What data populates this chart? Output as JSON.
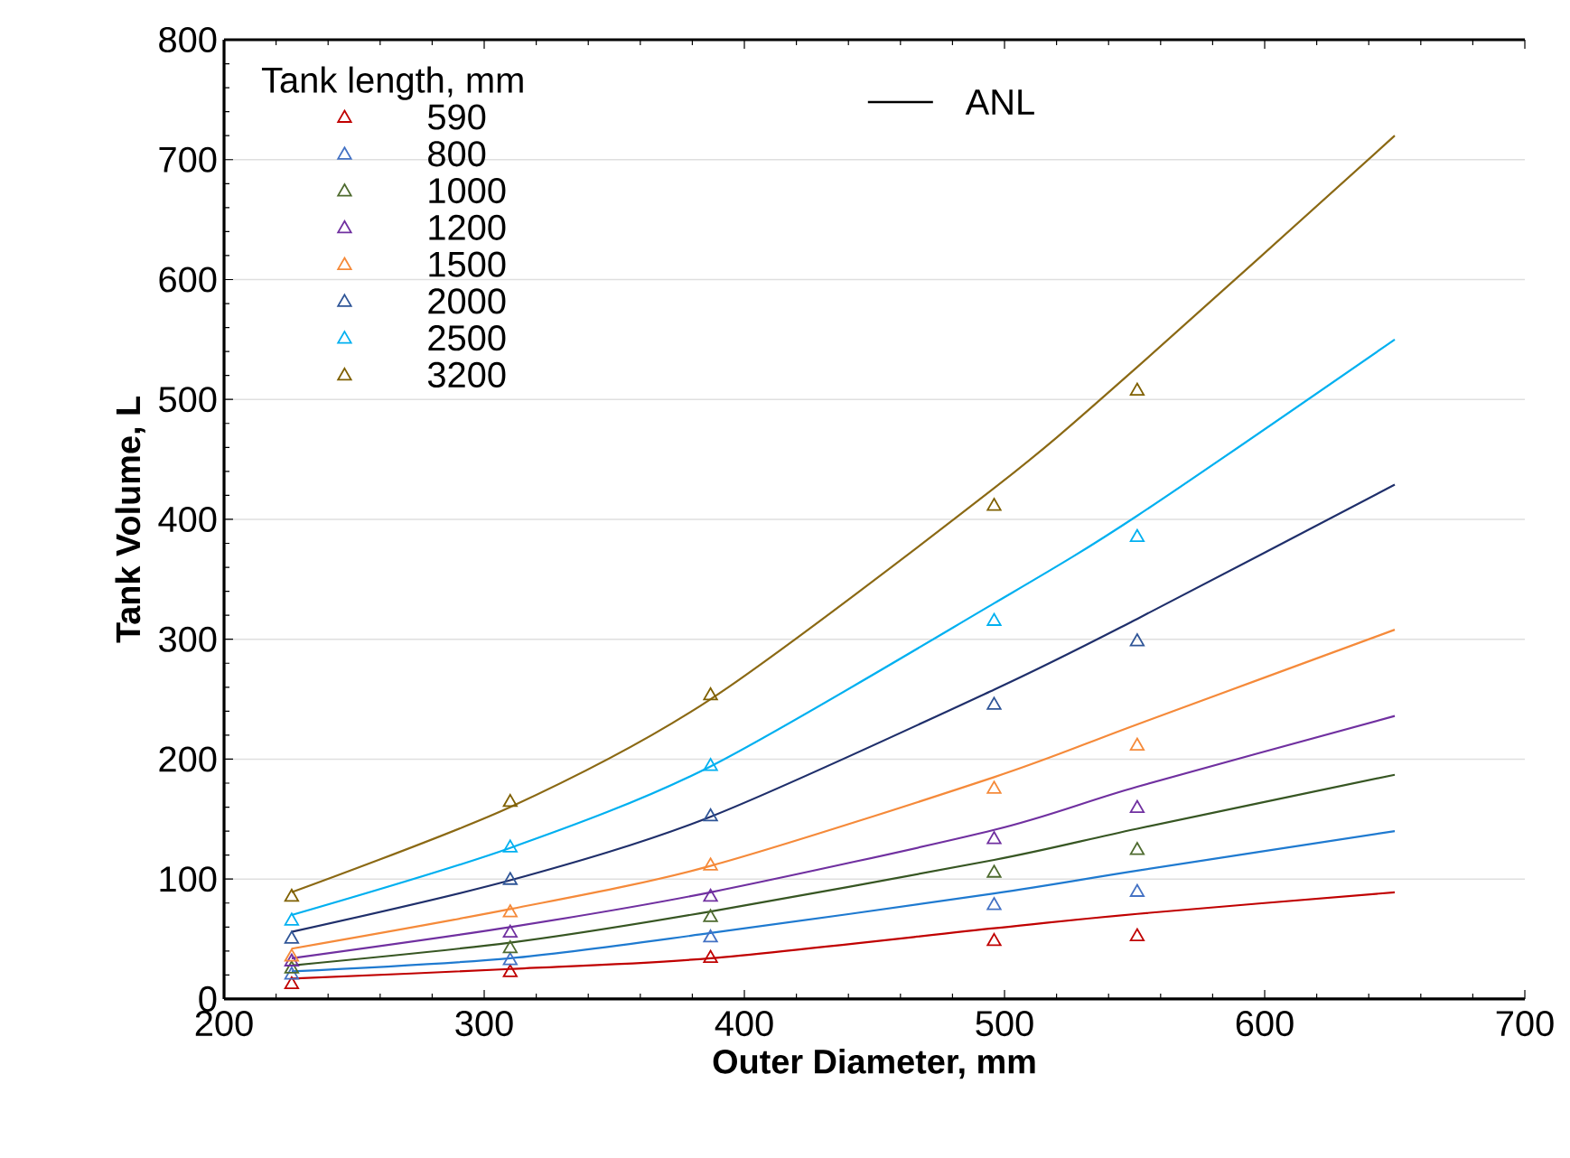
{
  "chart_data": {
    "type": "line",
    "xlabel": "Outer Diameter, mm",
    "ylabel": "Tank Volume, L",
    "legend_title": "Tank length, mm",
    "xlim": [
      200,
      700
    ],
    "ylim": [
      0,
      800
    ],
    "xticks": [
      200,
      300,
      400,
      500,
      600,
      700
    ],
    "yticks": [
      0,
      100,
      200,
      300,
      400,
      500,
      600,
      700,
      800
    ],
    "grid": "y",
    "legend": "top left",
    "annotations": [
      "ANL"
    ],
    "series": [
      {
        "name": "590",
        "type": "scatter",
        "marker": "triangle",
        "color": "#c00000",
        "x": [
          226,
          310,
          387,
          496,
          551
        ],
        "values": [
          12,
          22,
          34,
          48,
          52
        ]
      },
      {
        "name": "800",
        "type": "scatter",
        "marker": "triangle",
        "color": "#4472c4",
        "x": [
          226,
          310,
          387,
          496,
          551
        ],
        "values": [
          20,
          32,
          51,
          78,
          89
        ]
      },
      {
        "name": "1000",
        "type": "scatter",
        "marker": "triangle",
        "color": "#4e6b2f",
        "x": [
          226,
          310,
          387,
          496,
          551
        ],
        "values": [
          25,
          42,
          68,
          105,
          124
        ]
      },
      {
        "name": "1200",
        "type": "scatter",
        "marker": "triangle",
        "color": "#7030a0",
        "x": [
          226,
          310,
          387,
          496,
          551
        ],
        "values": [
          31,
          55,
          85,
          133,
          159
        ]
      },
      {
        "name": "1500",
        "type": "scatter",
        "marker": "triangle",
        "color": "#f58a3a",
        "x": [
          226,
          310,
          387,
          496,
          551
        ],
        "values": [
          35,
          72,
          111,
          175,
          211
        ]
      },
      {
        "name": "2000",
        "type": "scatter",
        "marker": "triangle",
        "color": "#2f5597",
        "x": [
          226,
          310,
          387,
          496,
          551
        ],
        "values": [
          50,
          99,
          152,
          245,
          298
        ]
      },
      {
        "name": "2500",
        "type": "scatter",
        "marker": "triangle",
        "color": "#00b0f0",
        "x": [
          226,
          310,
          387,
          496,
          551
        ],
        "values": [
          65,
          126,
          194,
          315,
          385
        ]
      },
      {
        "name": "3200",
        "type": "scatter",
        "marker": "triangle",
        "color": "#7f6000",
        "x": [
          226,
          310,
          387,
          496,
          551
        ],
        "values": [
          85,
          164,
          253,
          411,
          507
        ]
      },
      {
        "marker": "none",
        "color": "#c00000",
        "x": [
          226,
          310,
          387,
          496,
          551,
          650
        ],
        "values": [
          17,
          25,
          34,
          59,
          71,
          89
        ]
      },
      {
        "marker": "none",
        "color": "#1f7ad0",
        "x": [
          226,
          310,
          387,
          496,
          551,
          650
        ],
        "values": [
          23,
          34,
          55,
          88,
          107,
          140
        ]
      },
      {
        "marker": "none",
        "color": "#375623",
        "x": [
          226,
          310,
          387,
          496,
          551,
          650
        ],
        "values": [
          28,
          47,
          73,
          116,
          142,
          187
        ]
      },
      {
        "marker": "none",
        "color": "#7030a0",
        "x": [
          226,
          310,
          387,
          496,
          551,
          650
        ],
        "values": [
          34,
          60,
          89,
          141,
          177,
          236
        ]
      },
      {
        "marker": "none",
        "color": "#f58a3a",
        "x": [
          226,
          310,
          387,
          496,
          551,
          650
        ],
        "values": [
          42,
          75,
          111,
          185,
          229,
          308
        ]
      },
      {
        "marker": "none",
        "color": "#1f2f6b",
        "x": [
          226,
          310,
          387,
          496,
          551,
          650
        ],
        "values": [
          56,
          99,
          152,
          258,
          317,
          429
        ]
      },
      {
        "marker": "none",
        "color": "#00b0f0",
        "x": [
          226,
          310,
          387,
          496,
          551,
          650
        ],
        "values": [
          70,
          126,
          194,
          330,
          403,
          550
        ]
      },
      {
        "marker": "none",
        "color": "#8b6914",
        "x": [
          226,
          310,
          387,
          496,
          551,
          650
        ],
        "values": [
          89,
          160,
          250,
          426,
          527,
          720
        ]
      }
    ]
  }
}
